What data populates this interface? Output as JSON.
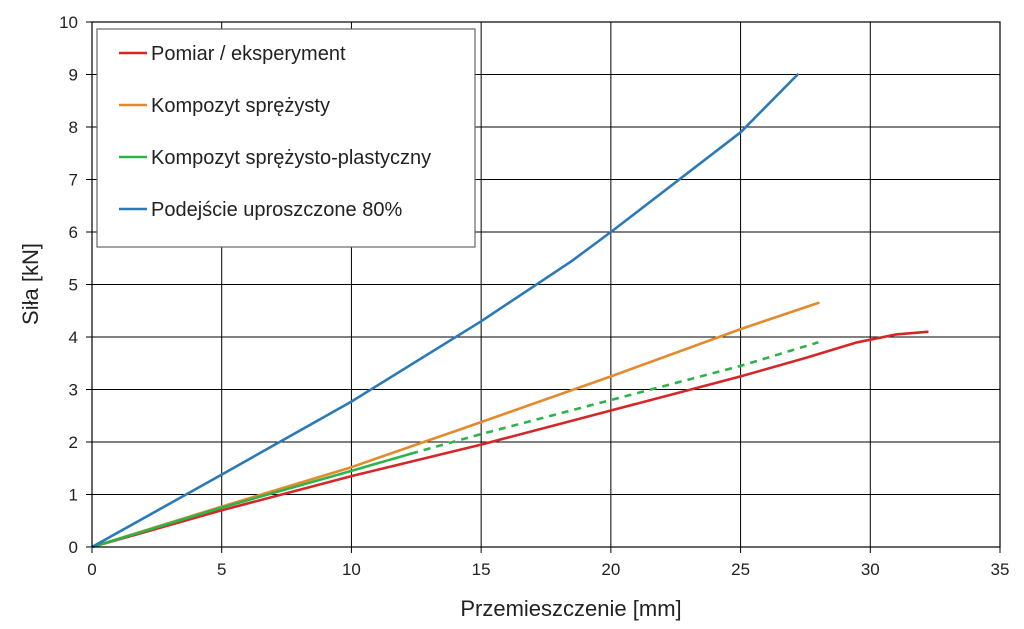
{
  "chart_data": {
    "type": "line",
    "xlabel": "Przemieszczenie [mm]",
    "ylabel": "Siła [kN]",
    "xlim": [
      0,
      35
    ],
    "ylim": [
      0,
      10
    ],
    "x_ticks": [
      "0",
      "5",
      "10",
      "15",
      "20",
      "25",
      "30",
      "35"
    ],
    "y_ticks": [
      "0",
      "1",
      "2",
      "3",
      "4",
      "5",
      "6",
      "7",
      "8",
      "9",
      "10"
    ],
    "grid": true,
    "legend_position": "top-left",
    "series": [
      {
        "name": "Pomiar / eksperyment",
        "color": "#d62728",
        "line_style": "solid",
        "x": [
          0,
          5,
          10,
          15,
          20,
          25,
          27.5,
          29.5,
          31,
          32.2
        ],
        "y": [
          0,
          0.7,
          1.35,
          1.95,
          2.6,
          3.25,
          3.6,
          3.9,
          4.05,
          4.1
        ]
      },
      {
        "name": "Kompozyt sprężysty",
        "color": "#e38a2c",
        "line_style": "solid",
        "x": [
          0,
          5,
          10,
          15,
          20,
          25,
          28
        ],
        "y": [
          0,
          0.77,
          1.52,
          2.38,
          3.25,
          4.15,
          4.65
        ]
      },
      {
        "name": "Kompozyt sprężysto-plastyczny",
        "color": "#2db34a",
        "line_style": "solid",
        "x": [
          0,
          5,
          10,
          12.3
        ],
        "y": [
          0,
          0.75,
          1.45,
          1.78
        ]
      },
      {
        "name": "",
        "color": "#2db34a",
        "line_style": "dashed",
        "x": [
          12.3,
          15,
          20,
          25,
          28
        ],
        "y": [
          1.78,
          2.15,
          2.8,
          3.45,
          3.9
        ]
      },
      {
        "name": "Podejście uproszczone 80%",
        "color": "#2a7ab8",
        "line_style": "solid",
        "x": [
          0,
          5,
          10,
          15,
          18.5,
          20,
          25,
          27.2
        ],
        "y": [
          0,
          1.38,
          2.77,
          4.3,
          5.45,
          6.0,
          7.9,
          9.0
        ]
      }
    ]
  }
}
